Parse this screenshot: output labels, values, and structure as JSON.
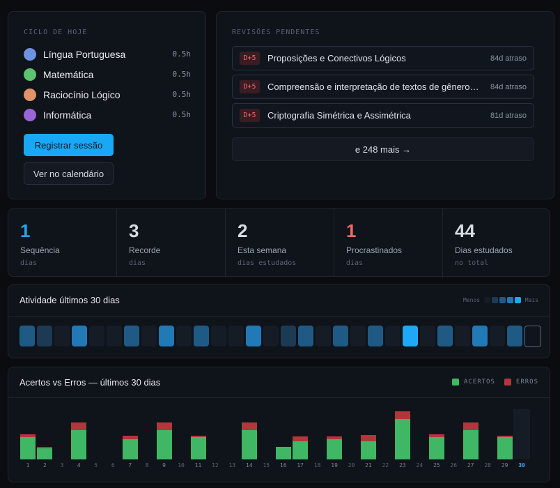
{
  "ciclo": {
    "title": "CICLO DE HOJE",
    "items": [
      {
        "name": "Língua Portuguesa",
        "duration": "0.5h",
        "color": "#6f93e0"
      },
      {
        "name": "Matemática",
        "duration": "0.5h",
        "color": "#5cc36f"
      },
      {
        "name": "Raciocínio Lógico",
        "duration": "0.5h",
        "color": "#e0926a"
      },
      {
        "name": "Informática",
        "duration": "0.5h",
        "color": "#9b64d8"
      }
    ],
    "register_label": "Registrar sessão",
    "calendar_label": "Ver no calendário"
  },
  "revisoes": {
    "title": "REVISÕES PENDENTES",
    "items": [
      {
        "badge": "D+5",
        "title": "Proposições e Conectivos Lógicos",
        "late": "84d atraso"
      },
      {
        "badge": "D+5",
        "title": "Compreensão e interpretação de textos de gêneros va…",
        "late": "84d atraso"
      },
      {
        "badge": "D+5",
        "title": "Criptografia Simétrica e Assimétrica",
        "late": "81d atraso"
      }
    ],
    "more_label": "e 248 mais →"
  },
  "stats": [
    {
      "value": "1",
      "label": "Sequência",
      "sub": "dias",
      "color": "#1ea7f2"
    },
    {
      "value": "3",
      "label": "Recorde",
      "sub": "dias",
      "color": "#d6dbe4"
    },
    {
      "value": "2",
      "label": "Esta semana",
      "sub": "dias estudados",
      "color": "#d6dbe4"
    },
    {
      "value": "1",
      "label": "Procrastinados",
      "sub": "dias",
      "color": "#f06a6a"
    },
    {
      "value": "44",
      "label": "Dias estudados",
      "sub": "no total",
      "color": "#d6dbe4"
    }
  ],
  "atividade": {
    "title": "Atividade últimos 30 dias",
    "legend_less": "Menos",
    "legend_more": "Mais",
    "levels": [
      2,
      1,
      0,
      3,
      0,
      0,
      2,
      0,
      3,
      0,
      2,
      0,
      0,
      3,
      0,
      1,
      2,
      0,
      2,
      0,
      2,
      0,
      4,
      0,
      2,
      0,
      3,
      0,
      2,
      0
    ],
    "today_index": 29
  },
  "chart_data": {
    "type": "bar",
    "title": "Acertos vs Erros — últimos 30 dias",
    "categories": [
      "1",
      "2",
      "3",
      "4",
      "5",
      "6",
      "7",
      "8",
      "9",
      "10",
      "11",
      "12",
      "13",
      "14",
      "15",
      "16",
      "17",
      "18",
      "19",
      "20",
      "21",
      "22",
      "23",
      "24",
      "25",
      "26",
      "27",
      "28",
      "29",
      "30"
    ],
    "highlight_category": "30",
    "series": [
      {
        "name": "ACERTOS",
        "color": "#3fb764",
        "values": [
          6,
          3,
          0,
          8,
          0,
          0,
          5.5,
          0,
          8,
          0,
          6,
          0,
          0,
          8,
          0,
          3.5,
          5,
          0,
          5.5,
          0,
          5,
          0,
          11,
          0,
          6,
          0,
          8,
          0,
          6,
          0
        ]
      },
      {
        "name": "ERROS",
        "color": "#b3363c",
        "values": [
          0.8,
          0.4,
          0,
          2,
          0,
          0,
          1,
          0,
          2,
          0,
          0.4,
          0,
          0,
          2,
          0,
          0,
          1.2,
          0,
          0.8,
          0,
          1.6,
          0,
          2,
          0,
          0.8,
          0,
          2,
          0,
          0.4,
          0
        ]
      }
    ],
    "ylim": [
      0,
      14
    ],
    "legend": "top-right"
  }
}
